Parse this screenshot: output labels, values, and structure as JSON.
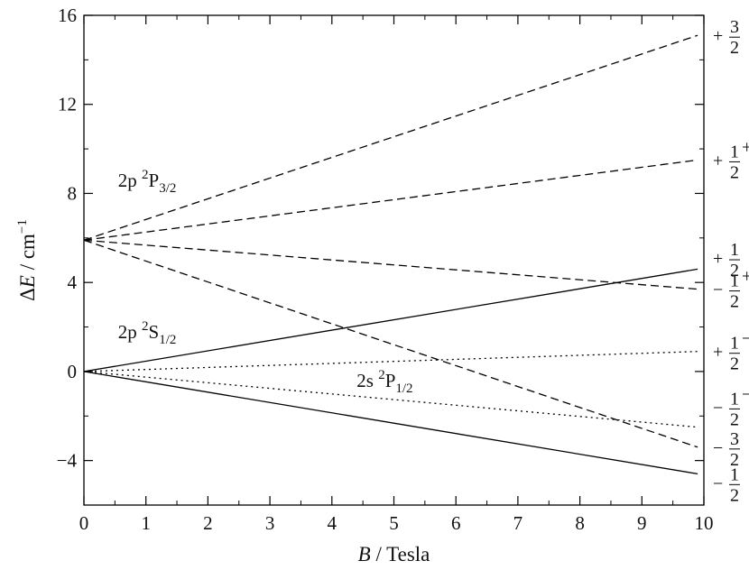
{
  "chart_data": {
    "type": "line",
    "xlabel": {
      "var": "B",
      "rest": " / Tesla"
    },
    "ylabel": {
      "var": "ΔE",
      "rest": " / cm",
      "sup": "−1"
    },
    "xlim": [
      0,
      10
    ],
    "ylim": [
      -6,
      16
    ],
    "xticks": [
      0,
      1,
      2,
      3,
      4,
      5,
      6,
      7,
      8,
      9,
      10
    ],
    "yticks": [
      {
        "value": -4,
        "label": "−4"
      },
      {
        "value": 0,
        "label": "0"
      },
      {
        "value": 4,
        "label": "4"
      },
      {
        "value": 8,
        "label": "8"
      },
      {
        "value": 12,
        "label": "12"
      },
      {
        "value": 16,
        "label": "16"
      }
    ],
    "grid": false,
    "series": [
      {
        "style": "dashed",
        "x": [
          0,
          9.9
        ],
        "y": [
          5.9,
          15.1
        ]
      },
      {
        "style": "dashed",
        "x": [
          0,
          9.9
        ],
        "y": [
          5.9,
          9.5
        ]
      },
      {
        "style": "dashed",
        "x": [
          0,
          9.9
        ],
        "y": [
          5.9,
          3.7
        ]
      },
      {
        "style": "dashed",
        "x": [
          0,
          9.9
        ],
        "y": [
          5.9,
          -3.4
        ]
      },
      {
        "style": "solid",
        "x": [
          0,
          9.9
        ],
        "y": [
          0,
          4.6
        ]
      },
      {
        "style": "solid",
        "x": [
          0,
          9.9
        ],
        "y": [
          0,
          -4.6
        ]
      },
      {
        "style": "dotted",
        "x": [
          0,
          9.9
        ],
        "y": [
          0,
          0.9
        ]
      },
      {
        "style": "dotted",
        "x": [
          0,
          9.9
        ],
        "y": [
          0,
          -2.5
        ]
      }
    ],
    "annotations": [
      {
        "base": "2p ",
        "sup": "2",
        "term": "P",
        "sub": "3/2",
        "x": 0.55,
        "y": 8.3
      },
      {
        "base": "2p ",
        "sup": "2",
        "term": "S",
        "sub": "1/2",
        "x": 0.55,
        "y": 1.5
      },
      {
        "base": "2s ",
        "sup": "2",
        "term": "P",
        "sub": "1/2",
        "x": 4.4,
        "y": -0.7
      }
    ],
    "mj_labels": [
      {
        "sign": "+",
        "num": "3",
        "den": "2",
        "sup": "",
        "y": 15.1
      },
      {
        "sign": "+",
        "num": "1",
        "den": "2",
        "sup": "+",
        "y": 9.5
      },
      {
        "sign": "+",
        "num": "1",
        "den": "2",
        "sup": "",
        "y": 5.1
      },
      {
        "sign": "−",
        "num": "1",
        "den": "2",
        "sup": "+",
        "y": 3.7
      },
      {
        "sign": "+",
        "num": "1",
        "den": "2",
        "sup": "−",
        "y": 0.9
      },
      {
        "sign": "−",
        "num": "1",
        "den": "2",
        "sup": "−",
        "y": -1.6
      },
      {
        "sign": "−",
        "num": "3",
        "den": "2",
        "sup": "",
        "y": -3.4
      },
      {
        "sign": "−",
        "num": "1",
        "den": "2",
        "sup": "",
        "y": -5.0
      }
    ]
  }
}
